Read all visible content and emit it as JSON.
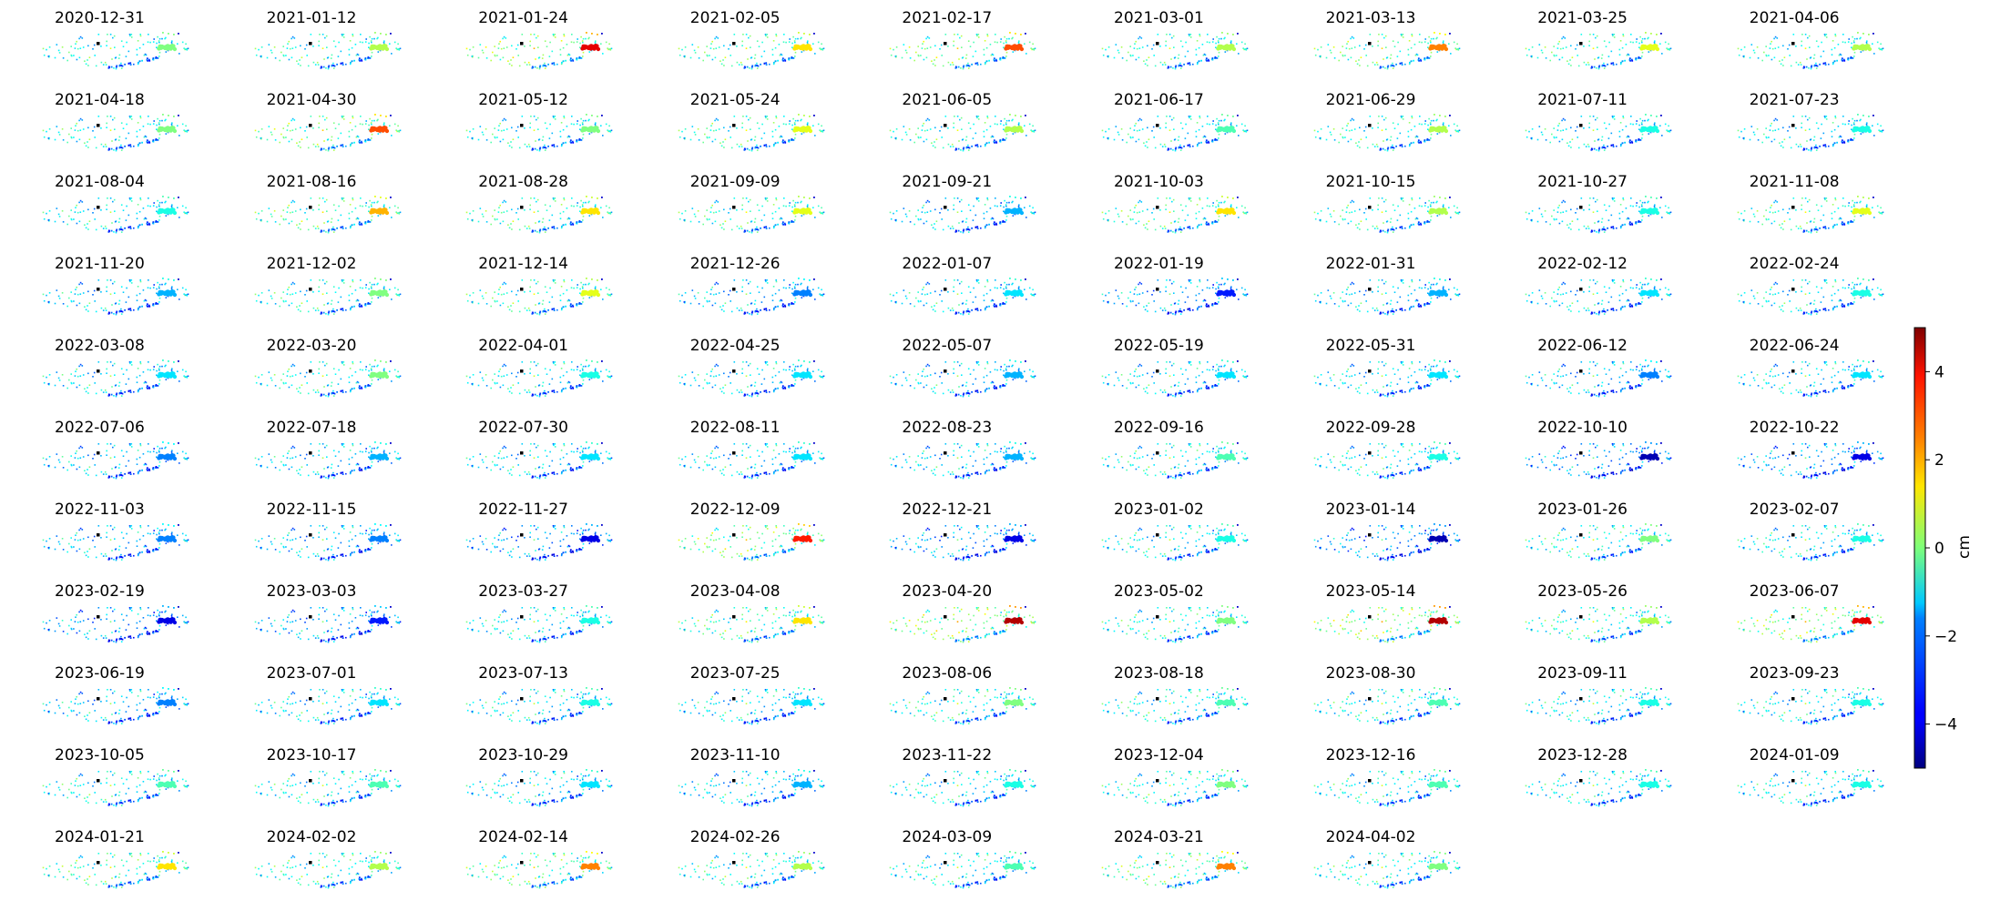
{
  "chart_data": {
    "type": "scatter",
    "description": "Small-multiple maps of displacement per acquisition date",
    "dates": [
      "2020-12-31",
      "2021-01-12",
      "2021-01-24",
      "2021-02-05",
      "2021-02-17",
      "2021-03-01",
      "2021-03-13",
      "2021-03-25",
      "2021-04-06",
      "2021-04-18",
      "2021-04-30",
      "2021-05-12",
      "2021-05-24",
      "2021-06-05",
      "2021-06-17",
      "2021-06-29",
      "2021-07-11",
      "2021-07-23",
      "2021-08-04",
      "2021-08-16",
      "2021-08-28",
      "2021-09-09",
      "2021-09-21",
      "2021-10-03",
      "2021-10-15",
      "2021-10-27",
      "2021-11-08",
      "2021-11-20",
      "2021-12-02",
      "2021-12-14",
      "2021-12-26",
      "2022-01-07",
      "2022-01-19",
      "2022-01-31",
      "2022-02-12",
      "2022-02-24",
      "2022-03-08",
      "2022-03-20",
      "2022-04-01",
      "2022-04-25",
      "2022-05-07",
      "2022-05-19",
      "2022-05-31",
      "2022-06-12",
      "2022-06-24",
      "2022-07-06",
      "2022-07-18",
      "2022-07-30",
      "2022-08-11",
      "2022-08-23",
      "2022-09-16",
      "2022-09-28",
      "2022-10-10",
      "2022-10-22",
      "2022-11-03",
      "2022-11-15",
      "2022-11-27",
      "2022-12-09",
      "2022-12-21",
      "2023-01-02",
      "2023-01-14",
      "2023-01-26",
      "2023-02-07",
      "2023-02-19",
      "2023-03-03",
      "2023-03-27",
      "2023-04-08",
      "2023-04-20",
      "2023-05-02",
      "2023-05-14",
      "2023-05-26",
      "2023-06-07",
      "2023-06-19",
      "2023-07-01",
      "2023-07-13",
      "2023-07-25",
      "2023-08-06",
      "2023-08-18",
      "2023-08-30",
      "2023-09-11",
      "2023-09-23",
      "2023-10-05",
      "2023-10-17",
      "2023-10-29",
      "2023-11-10",
      "2023-11-22",
      "2023-12-04",
      "2023-12-16",
      "2023-12-28",
      "2024-01-09",
      "2024-01-21",
      "2024-02-02",
      "2024-02-14",
      "2024-02-26",
      "2024-03-09",
      "2024-03-21",
      "2024-04-02"
    ],
    "cluster_values": [
      0,
      0.5,
      4,
      1.5,
      3,
      0.5,
      2.5,
      1,
      0.5,
      0,
      3,
      0,
      1,
      0.5,
      -0.5,
      0.5,
      -1,
      -1,
      -1,
      2,
      1.5,
      1,
      -2,
      1.5,
      0.5,
      -1,
      1,
      -2,
      0,
      1,
      -2.5,
      -1.5,
      -3.5,
      -2,
      -1.5,
      -1,
      -1.5,
      0,
      -1,
      -1.5,
      -2,
      -1.5,
      -1.5,
      -2.5,
      -1.5,
      -2.5,
      -2,
      -1.5,
      -1.5,
      -2,
      -0.5,
      -1,
      -4.5,
      -4,
      -2.5,
      -2.5,
      -4,
      3.5,
      -4,
      -1,
      -4.5,
      0,
      -1,
      -4,
      -3.5,
      -1,
      1.5,
      4.5,
      0,
      4.5,
      0.5,
      4,
      -2.5,
      -1.5,
      -1,
      -1.5,
      0,
      -0.5,
      -0.5,
      -1,
      -1,
      -0.5,
      -0.5,
      -1.5,
      -2,
      -1,
      0,
      -0.5,
      -1,
      -1,
      1.5,
      0.5,
      2.5,
      0.5,
      -0.5,
      2.5,
      0
    ],
    "colorbar": {
      "label": "cm",
      "range": [
        -5,
        5
      ],
      "ticks": [
        "−4",
        "−2",
        "0",
        "2",
        "4"
      ],
      "colormap": "jet"
    }
  }
}
